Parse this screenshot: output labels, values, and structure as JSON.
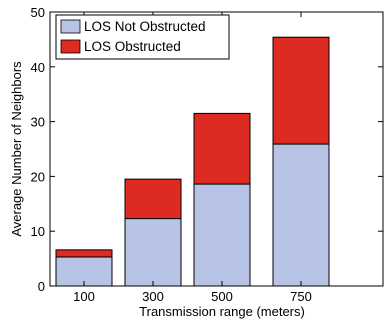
{
  "chart_data": {
    "type": "bar",
    "stacked": true,
    "categories": [
      "100",
      "300",
      "500",
      "750"
    ],
    "series": [
      {
        "name": "LOS Not Obstructed",
        "values": [
          5.3,
          12.3,
          18.6,
          25.9
        ],
        "color": "#b8c4e6"
      },
      {
        "name": "LOS Obstructed",
        "values": [
          1.3,
          7.2,
          12.9,
          19.5
        ],
        "color": "#dd2a22"
      }
    ],
    "title": "",
    "xlabel": "Transmission range (meters)",
    "ylabel": "Average Number of Neighbors",
    "ylim": [
      0,
      50
    ],
    "yticks": [
      "0",
      "10",
      "20",
      "30",
      "40",
      "50"
    ],
    "grid": false,
    "legend_position": "top-left"
  }
}
